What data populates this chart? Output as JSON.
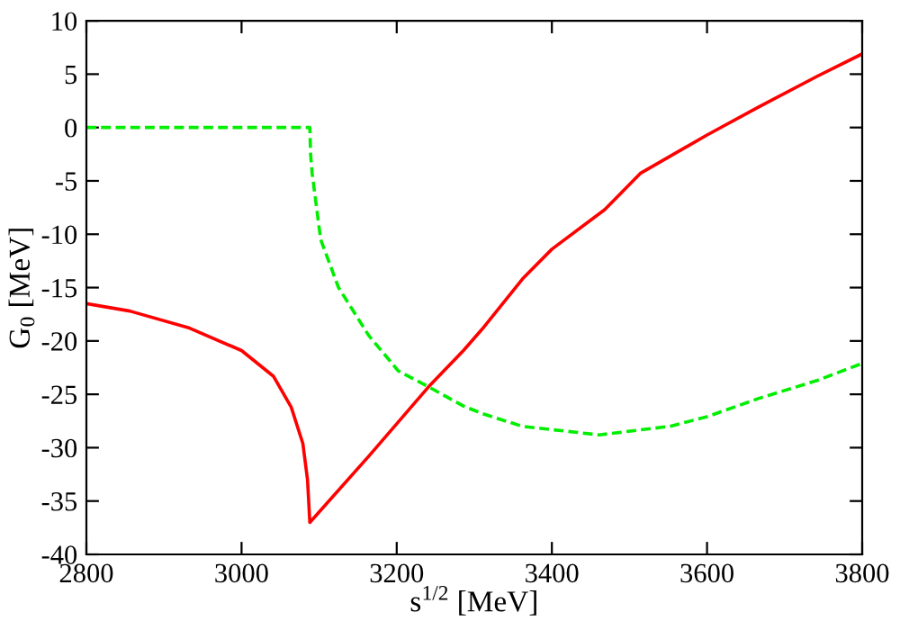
{
  "chart_data": {
    "type": "line",
    "xlabel": "s$^{1/2}$ [MeV]",
    "ylabel": "G$_{0}$ [MeV]",
    "xlim": [
      2800,
      3800
    ],
    "xticks": [
      2800,
      3000,
      3200,
      3400,
      3600,
      3800
    ],
    "ylim": [
      -40,
      10
    ],
    "yticks": [
      -40,
      -35,
      -30,
      -25,
      -20,
      -15,
      -10,
      -5,
      0,
      5,
      10
    ],
    "grid": false,
    "legend": false,
    "marker": "none",
    "series": [
      {
        "color": "#ff0000",
        "line_style": "solid",
        "x": [
          2800,
          2856,
          2933,
          3000,
          3041,
          3064,
          3079,
          3085,
          3088,
          3164,
          3241,
          3286,
          3310,
          3362,
          3400,
          3468,
          3514,
          3600,
          3666,
          3742,
          3800
        ],
        "values": [
          -16.5,
          -17.2,
          -18.8,
          -20.9,
          -23.3,
          -26.2,
          -29.6,
          -33.0,
          -37.0,
          -30.8,
          -24.3,
          -20.9,
          -18.9,
          -14.2,
          -11.4,
          -7.7,
          -4.3,
          -0.7,
          1.9,
          4.8,
          6.9
        ]
      },
      {
        "color": "#00ee00",
        "line_style": "dashed",
        "x": [
          2800,
          3000,
          3088,
          3089,
          3091,
          3102,
          3125,
          3164,
          3202,
          3241,
          3286,
          3310,
          3362,
          3461,
          3552,
          3600,
          3666,
          3742,
          3800
        ],
        "values": [
          0,
          0,
          0,
          -2.5,
          -4.3,
          -10.5,
          -15.0,
          -19.5,
          -22.8,
          -24.3,
          -26.1,
          -26.8,
          -28.0,
          -28.8,
          -28.0,
          -27.1,
          -25.4,
          -23.7,
          -22.1
        ]
      }
    ]
  }
}
